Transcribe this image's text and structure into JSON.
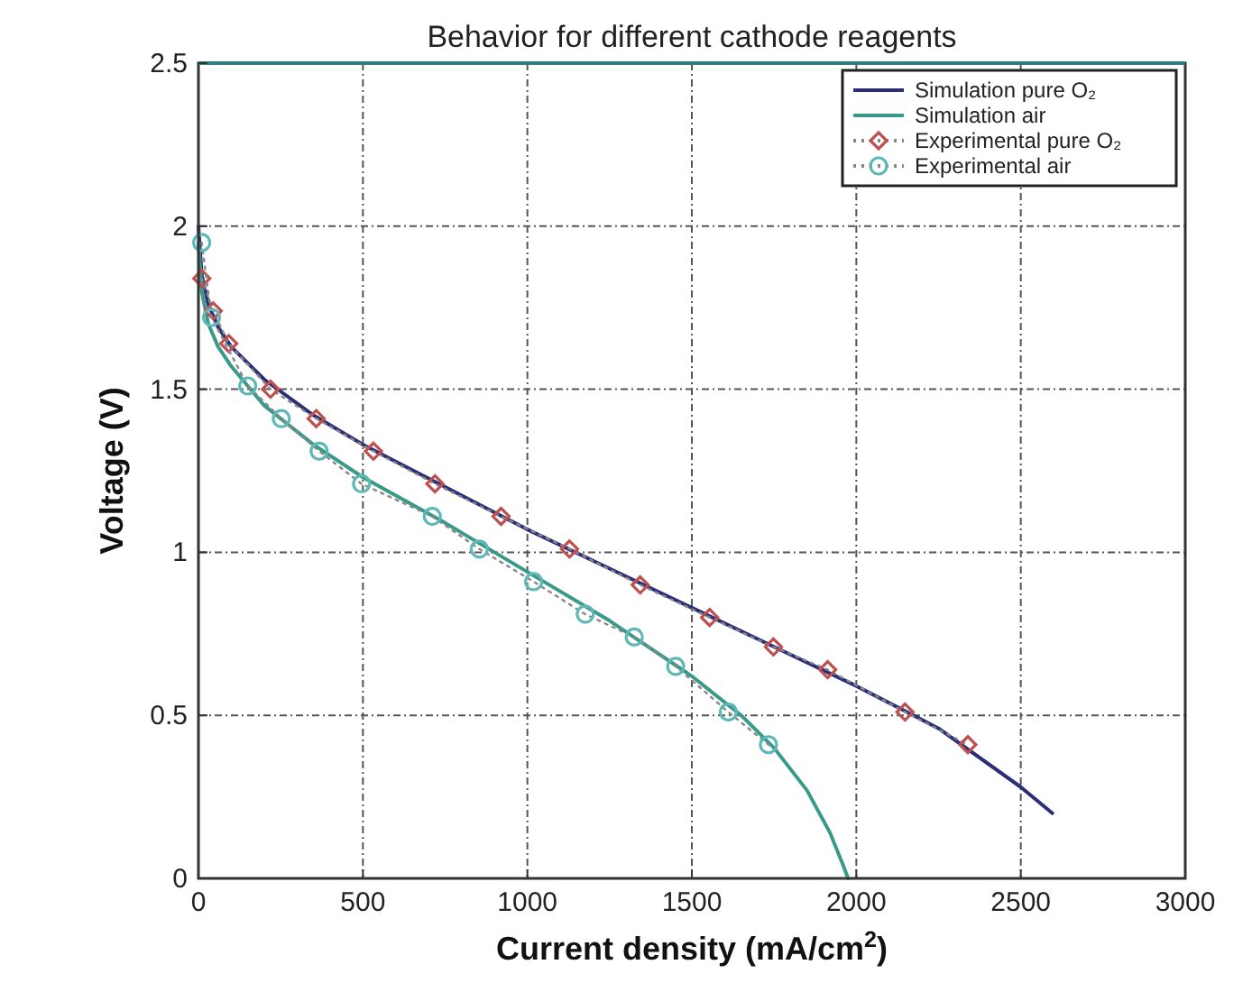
{
  "chart_data": {
    "type": "line",
    "title": "Behavior for different cathode reagents",
    "xlabel": "Current density (mA/cm$^{2}$)",
    "ylabel": "Voltage (V)",
    "xlim": [
      0,
      3000
    ],
    "xticks": [
      0,
      500,
      1000,
      1500,
      2000,
      2500,
      3000
    ],
    "ylim": [
      0,
      2.5
    ],
    "yticks": [
      0,
      0.5,
      1,
      1.5,
      2,
      2.5
    ],
    "grid": true,
    "legend": "top right",
    "series": [
      {
        "name": "Simulation pure O₂",
        "color": "#2b2f78",
        "marker": "none",
        "line_style": "solid",
        "x": [
          0,
          10,
          30,
          60,
          100,
          200,
          350,
          500,
          750,
          1000,
          1250,
          1500,
          1750,
          2000,
          2250,
          2500,
          2596
        ],
        "values": [
          2.0,
          1.85,
          1.76,
          1.69,
          1.63,
          1.53,
          1.42,
          1.33,
          1.2,
          1.07,
          0.95,
          0.83,
          0.71,
          0.59,
          0.46,
          0.28,
          0.2
        ]
      },
      {
        "name": "Simulation air",
        "color": "#3a9a8a",
        "marker": "none",
        "line_style": "solid",
        "x": [
          0,
          10,
          30,
          60,
          100,
          200,
          350,
          500,
          750,
          1000,
          1250,
          1500,
          1650,
          1750,
          1850,
          1920,
          1960,
          1975
        ],
        "values": [
          1.95,
          1.8,
          1.7,
          1.63,
          1.57,
          1.45,
          1.33,
          1.23,
          1.09,
          0.94,
          0.79,
          0.62,
          0.5,
          0.4,
          0.27,
          0.14,
          0.04,
          0
        ]
      },
      {
        "name": "Experimental pure O₂",
        "color": "#c05050",
        "marker": "diamond",
        "line_style": "dotted",
        "x": [
          10,
          45,
          92,
          219,
          358,
          532,
          719,
          920,
          1128,
          1343,
          1554,
          1748,
          1913,
          2148,
          2339
        ],
        "values": [
          1.84,
          1.74,
          1.64,
          1.5,
          1.41,
          1.31,
          1.21,
          1.11,
          1.01,
          0.9,
          0.8,
          0.71,
          0.64,
          0.51,
          0.41
        ]
      },
      {
        "name": "Experimental air",
        "color": "#5fb8b8",
        "marker": "circle",
        "line_style": "dotted",
        "x": [
          10,
          40,
          150,
          252,
          367,
          496,
          711,
          854,
          1019,
          1176,
          1325,
          1451,
          1611,
          1733
        ],
        "values": [
          1.95,
          1.72,
          1.51,
          1.41,
          1.31,
          1.21,
          1.11,
          1.01,
          0.91,
          0.81,
          0.74,
          0.65,
          0.51,
          0.41
        ]
      }
    ]
  }
}
